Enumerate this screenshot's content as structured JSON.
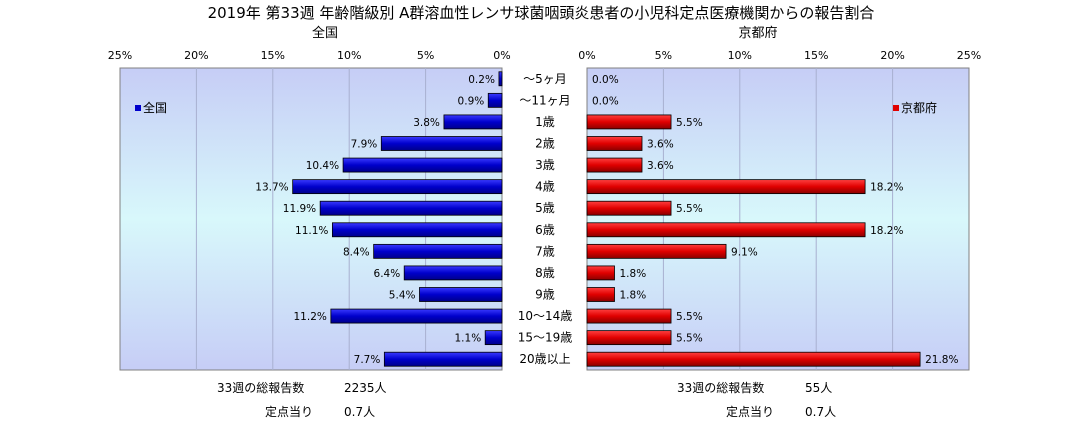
{
  "chart_data": {
    "type": "bar",
    "title": "2019年 第33週 年齢階級別 A群溶血性レンサ球菌咽頭炎患者の小児科定点医療機関からの報告割合",
    "categories": [
      "〜5ヶ月",
      "〜11ヶ月",
      "1歳",
      "2歳",
      "3歳",
      "4歳",
      "5歳",
      "6歳",
      "7歳",
      "8歳",
      "9歳",
      "10〜14歳",
      "15〜19歳",
      "20歳以上"
    ],
    "xlim": [
      0,
      25
    ],
    "tick_labels": [
      "0%",
      "5%",
      "10%",
      "15%",
      "20%",
      "25%"
    ],
    "grid": true,
    "series": [
      {
        "name": "全国",
        "panel_title": "全国",
        "color": "#0000cc",
        "values": [
          0.2,
          0.9,
          3.8,
          7.9,
          10.4,
          13.7,
          11.9,
          11.1,
          8.4,
          6.4,
          5.4,
          11.2,
          1.1,
          7.7
        ],
        "value_labels": [
          "0.2%",
          "0.9%",
          "3.8%",
          "7.9%",
          "10.4%",
          "13.7%",
          "11.9%",
          "11.1%",
          "8.4%",
          "6.4%",
          "5.4%",
          "11.2%",
          "1.1%",
          "7.7%"
        ],
        "legend": "全国"
      },
      {
        "name": "京都府",
        "panel_title": "京都府",
        "color": "#e00000",
        "values": [
          0.0,
          0.0,
          5.5,
          3.6,
          3.6,
          18.2,
          5.5,
          18.2,
          9.1,
          1.8,
          1.8,
          5.5,
          5.5,
          21.8
        ],
        "value_labels": [
          "0.0%",
          "0.0%",
          "5.5%",
          "3.6%",
          "3.6%",
          "18.2%",
          "5.5%",
          "18.2%",
          "9.1%",
          "1.8%",
          "1.8%",
          "5.5%",
          "5.5%",
          "21.8%"
        ],
        "legend": "京都府"
      }
    ]
  },
  "footer": {
    "national_total_label": "33週の総報告数",
    "national_total_value": "2235人",
    "national_per_label": "定点当り",
    "national_per_value": "0.7人",
    "kyoto_total_label": "33週の総報告数",
    "kyoto_total_value": "55人",
    "kyoto_per_label": "定点当り",
    "kyoto_per_value": "0.7人"
  }
}
